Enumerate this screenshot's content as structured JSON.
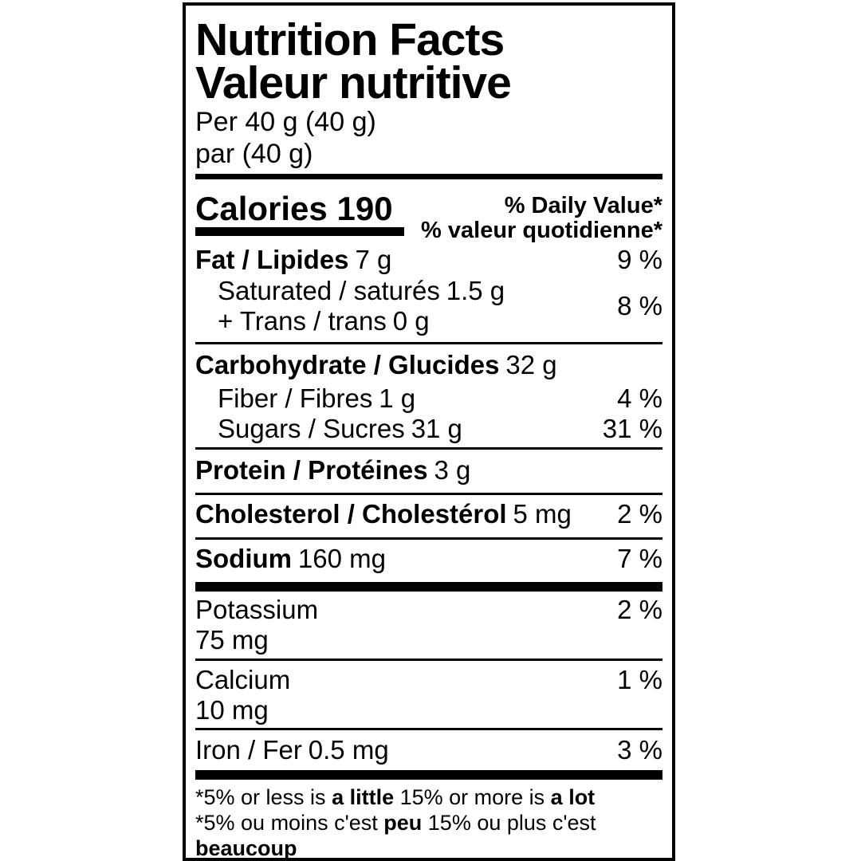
{
  "label": {
    "title_en": "Nutrition Facts",
    "title_fr": "Valeur nutritive",
    "serving_en": "Per 40 g (40 g)",
    "serving_fr": "par (40 g)",
    "calories": {
      "label": "Calories",
      "value": "190"
    },
    "dv_header_en": "% Daily Value*",
    "dv_header_fr": "% valeur quotidienne*",
    "colors": {
      "ink": "#000000",
      "paper": "#ffffff"
    }
  },
  "nutrients": {
    "fat": {
      "name": "Fat / Lipides",
      "amount": "7 g",
      "dv": "9 %"
    },
    "saturated": {
      "name": "Saturated / saturés",
      "amount": "1.5 g"
    },
    "trans": {
      "name": "+ Trans / trans",
      "amount": "0 g"
    },
    "saturated_trans_dv": "8 %",
    "carbohydrate": {
      "name": "Carbohydrate / Glucides",
      "amount": "32 g"
    },
    "fiber": {
      "name": "Fiber / Fibres",
      "amount": "1 g",
      "dv": "4 %"
    },
    "sugars": {
      "name": "Sugars / Sucres",
      "amount": "31 g",
      "dv": "31 %"
    },
    "protein": {
      "name": "Protein / Protéines",
      "amount": "3 g"
    },
    "cholesterol": {
      "name": "Cholesterol / Cholestérol",
      "amount": "5 mg",
      "dv": "2 %"
    },
    "sodium": {
      "name": "Sodium",
      "amount": "160 mg",
      "dv": "7 %"
    },
    "potassium": {
      "name": "Potassium",
      "amount": "75 mg",
      "dv": "2 %"
    },
    "calcium": {
      "name": "Calcium",
      "amount": "10 mg",
      "dv": "1 %"
    },
    "iron": {
      "name": "Iron / Fer",
      "amount": "0.5 mg",
      "dv": "3 %"
    }
  },
  "footnotes": {
    "en": {
      "t1": "*5% or less is ",
      "b1": "a little",
      "t2": " 15% or more is ",
      "b2": "a lot"
    },
    "fr": {
      "t1": "*5% ou moins c'est ",
      "b1": "peu",
      "t2": " 15% ou plus c'est ",
      "b2": "beaucoup"
    }
  }
}
